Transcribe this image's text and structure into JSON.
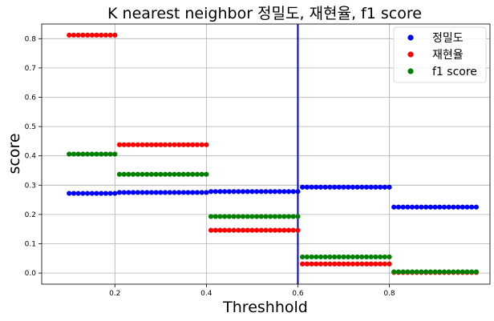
{
  "chart_data": {
    "type": "scatter",
    "title": "K nearest neighbor 정밀도, 재현율, f1 score",
    "xlabel": "Threshhold",
    "ylabel": "score",
    "xlim": [
      0.04,
      1.02
    ],
    "ylim": [
      -0.038,
      0.85
    ],
    "grid": true,
    "legend_position": "top-right",
    "xticks": [
      "0.2",
      "0.4",
      "0.6",
      "0.8"
    ],
    "xtick_values": [
      0.2,
      0.4,
      0.6,
      0.8
    ],
    "yticks": [
      "0.0",
      "0.1",
      "0.2",
      "0.3",
      "0.4",
      "0.5",
      "0.6",
      "0.7",
      "0.8"
    ],
    "ytick_values": [
      0.0,
      0.1,
      0.2,
      0.3,
      0.4,
      0.5,
      0.6,
      0.7,
      0.8
    ],
    "vline": {
      "x": 0.6,
      "color": "#0000cc"
    },
    "x_points": {
      "start": 0.1,
      "end": 0.99,
      "step": 0.01
    },
    "series": [
      {
        "name": "정밀도",
        "color": "#0000ff",
        "segments": [
          {
            "from": 0.1,
            "to": 0.2,
            "y": 0.272
          },
          {
            "from": 0.21,
            "to": 0.4,
            "y": 0.275
          },
          {
            "from": 0.41,
            "to": 0.6,
            "y": 0.278
          },
          {
            "from": 0.61,
            "to": 0.8,
            "y": 0.293
          },
          {
            "from": 0.81,
            "to": 0.99,
            "y": 0.225
          }
        ]
      },
      {
        "name": "재현율",
        "color": "#ff0000",
        "segments": [
          {
            "from": 0.1,
            "to": 0.2,
            "y": 0.812
          },
          {
            "from": 0.21,
            "to": 0.4,
            "y": 0.438
          },
          {
            "from": 0.41,
            "to": 0.6,
            "y": 0.146
          },
          {
            "from": 0.61,
            "to": 0.8,
            "y": 0.031
          },
          {
            "from": 0.81,
            "to": 0.99,
            "y": 0.002
          }
        ]
      },
      {
        "name": "f1 score",
        "color": "#008000",
        "segments": [
          {
            "from": 0.1,
            "to": 0.2,
            "y": 0.406
          },
          {
            "from": 0.21,
            "to": 0.4,
            "y": 0.337
          },
          {
            "from": 0.41,
            "to": 0.6,
            "y": 0.193
          },
          {
            "from": 0.61,
            "to": 0.8,
            "y": 0.055
          },
          {
            "from": 0.81,
            "to": 0.99,
            "y": 0.004
          }
        ]
      }
    ]
  }
}
